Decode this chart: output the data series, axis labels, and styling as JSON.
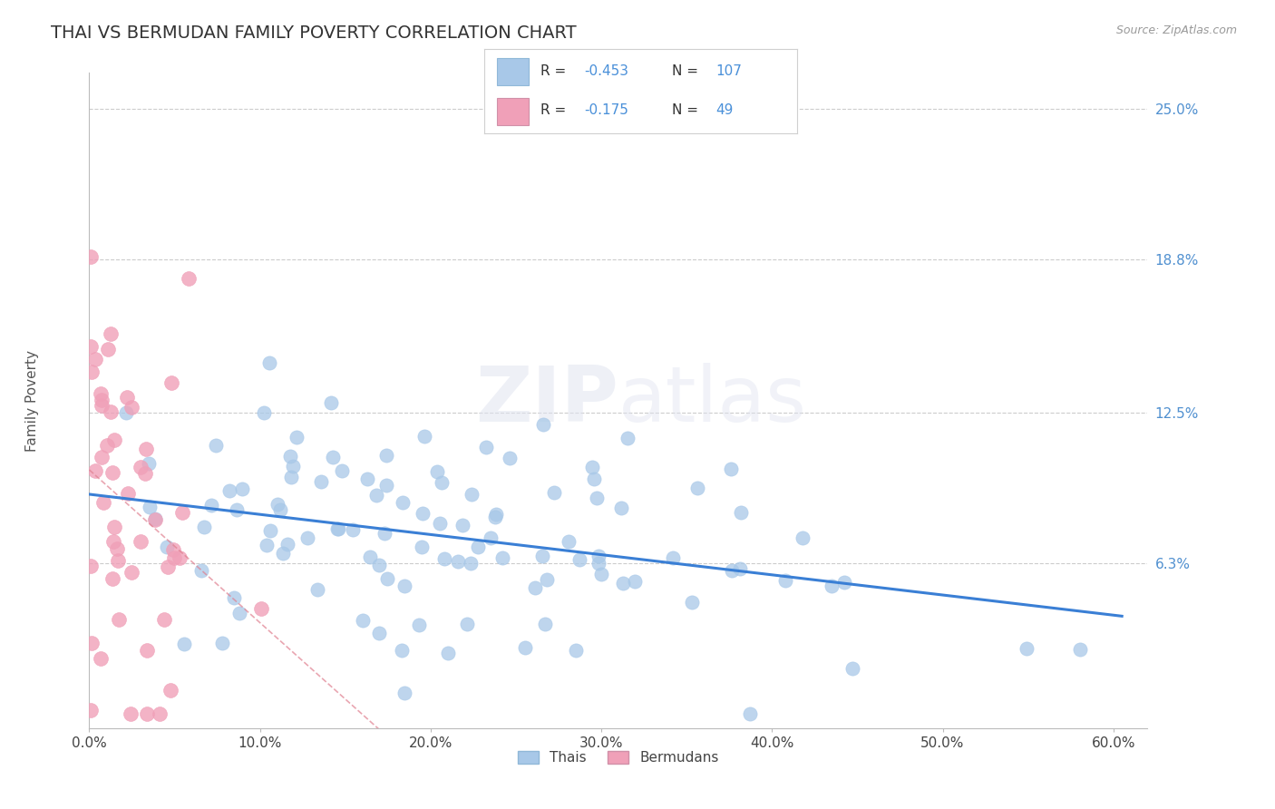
{
  "title": "THAI VS BERMUDAN FAMILY POVERTY CORRELATION CHART",
  "source_text": "Source: ZipAtlas.com",
  "ylabel": "Family Poverty",
  "xlim": [
    0.0,
    0.62
  ],
  "ylim": [
    -0.005,
    0.265
  ],
  "ytick_vals": [
    0.063,
    0.125,
    0.188,
    0.25
  ],
  "ytick_labels": [
    "6.3%",
    "12.5%",
    "18.8%",
    "25.0%"
  ],
  "xtick_vals": [
    0.0,
    0.1,
    0.2,
    0.3,
    0.4,
    0.5,
    0.6
  ],
  "xtick_labels": [
    "0.0%",
    "10.0%",
    "20.0%",
    "30.0%",
    "40.0%",
    "50.0%",
    "60.0%"
  ],
  "thai_color": "#a8c8e8",
  "bermudan_color": "#f0a0b8",
  "thai_line_color": "#3a7fd5",
  "bermudan_line_color": "#e08090",
  "R_thai": -0.453,
  "N_thai": 107,
  "R_bermudan": -0.175,
  "N_bermudan": 49,
  "legend_label_thai": "Thais",
  "legend_label_bermudan": "Bermudans",
  "title_fontsize": 14,
  "label_fontsize": 11,
  "tick_fontsize": 11,
  "ytick_color": "#5090d0",
  "xtick_color": "#444444",
  "grid_color": "#cccccc",
  "background_color": "#ffffff",
  "legend_blue": "#4a90d9",
  "legend_dark": "#333333"
}
